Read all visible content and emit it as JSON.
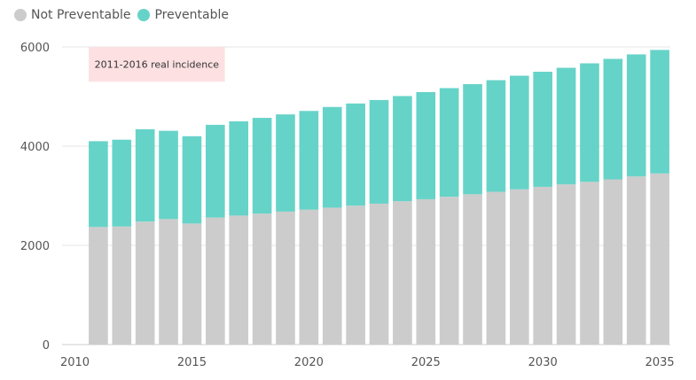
{
  "chart_data": {
    "type": "bar",
    "stacked": true,
    "x": [
      2011,
      2012,
      2013,
      2014,
      2015,
      2016,
      2017,
      2018,
      2019,
      2020,
      2021,
      2022,
      2023,
      2024,
      2025,
      2026,
      2027,
      2028,
      2029,
      2030,
      2031,
      2032,
      2033,
      2034,
      2035
    ],
    "series": [
      {
        "name": "Not Preventable",
        "color": "#cccccc",
        "values": [
          2370,
          2380,
          2480,
          2530,
          2440,
          2560,
          2600,
          2640,
          2680,
          2720,
          2760,
          2800,
          2840,
          2890,
          2930,
          2980,
          3030,
          3080,
          3130,
          3180,
          3230,
          3280,
          3330,
          3390,
          3450
        ]
      },
      {
        "name": "Preventable",
        "color": "#66d3c8",
        "values": [
          1730,
          1750,
          1860,
          1780,
          1760,
          1870,
          1900,
          1930,
          1960,
          1990,
          2030,
          2060,
          2090,
          2120,
          2160,
          2190,
          2220,
          2250,
          2290,
          2320,
          2350,
          2390,
          2430,
          2460,
          2490
        ]
      }
    ],
    "x_ticks": [
      2010,
      2015,
      2020,
      2025,
      2030,
      2035
    ],
    "y_ticks": [
      0,
      2000,
      4000,
      6000
    ],
    "xlim": [
      2010,
      2035
    ],
    "ylim": [
      0,
      6000
    ],
    "title": "",
    "xlabel": "",
    "ylabel": "",
    "grid": "horizontal",
    "legend_position": "top-left",
    "annotation": {
      "text": "2011-2016 real incidence",
      "x_start": 2011,
      "x_end": 2016,
      "y_top": 6000,
      "y_bottom": 5300,
      "color": "#fde0e2"
    }
  }
}
